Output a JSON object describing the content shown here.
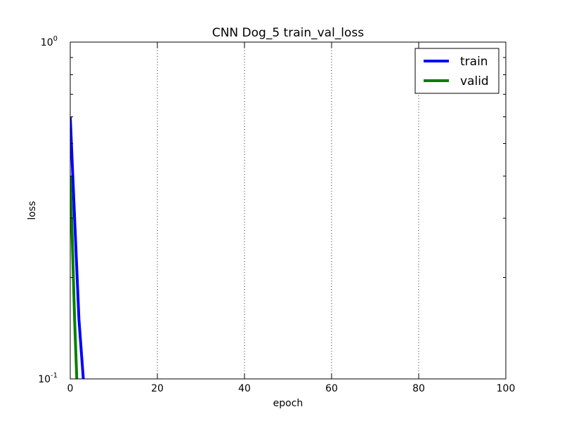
{
  "chart_data": {
    "type": "line",
    "title": "CNN Dog_5 train_val_loss",
    "xlabel": "epoch",
    "ylabel": "loss",
    "xlim": [
      0,
      100
    ],
    "ylim": [
      0.1,
      1.0
    ],
    "y_scale": "log",
    "x_ticks": [
      0,
      20,
      40,
      60,
      80,
      100
    ],
    "y_tick_labels": [
      {
        "value": 1.0,
        "base": "10",
        "exp": "0"
      },
      {
        "value": 0.1,
        "base": "10",
        "exp": "-1"
      }
    ],
    "grid": "x-dotted",
    "legend_position": "top-right",
    "series": [
      {
        "name": "train",
        "color": "#0000ff",
        "x": [
          0,
          1,
          2,
          3
        ],
        "y": [
          0.6,
          0.3,
          0.15,
          0.1
        ]
      },
      {
        "name": "valid",
        "color": "#008000",
        "x": [
          0,
          0.5,
          1,
          1.5
        ],
        "y": [
          0.4,
          0.25,
          0.15,
          0.1
        ]
      }
    ]
  }
}
